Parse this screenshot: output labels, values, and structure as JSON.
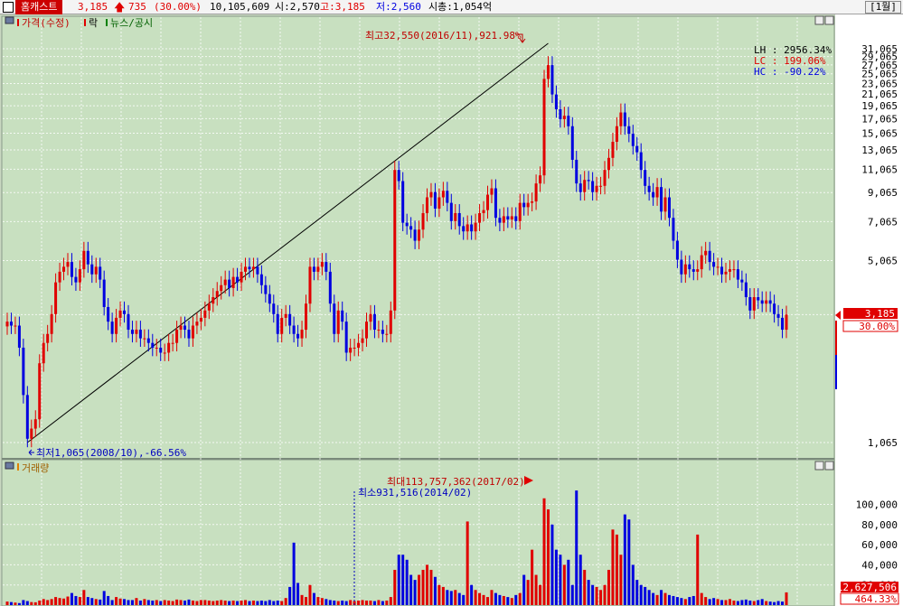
{
  "header": {
    "name": "홈캐스트",
    "price": "3,185",
    "change": "735",
    "change_pct": "(30.00%)",
    "volume": "10,105,609",
    "open": "시:2,570",
    "high": "고:3,185",
    "low": "저:2,560",
    "mktcap": "시총:1,054억",
    "period": "[1월]",
    "colors": {
      "up": "#e00000",
      "down": "#0000e0"
    }
  },
  "price_pane": {
    "legend": {
      "price": "가격(수정)",
      "rak": "락",
      "news": "뉴스/공시"
    },
    "marker_high": "최고32,550(2016/11),921.98%",
    "marker_low": "최저1,065(2008/10),-66.56%",
    "info": [
      {
        "label": "LH",
        "value": ": 2956.34%",
        "color": "#000000"
      },
      {
        "label": "LC",
        "value": ":  199.06%",
        "color": "#e00000"
      },
      {
        "label": "HC",
        "value": ": -90.22%",
        "color": "#0000e0"
      }
    ],
    "current_price": "3,185",
    "current_pct": "30.00%"
  },
  "volume_pane": {
    "legend": "거래량",
    "marker_max": "최대113,757,362(2017/02)",
    "marker_min": "최소931,516(2014/02)",
    "current_volume": "12,627,506",
    "current_pct": "464.33%"
  },
  "chart_data": [
    {
      "type": "candlestick",
      "title": "",
      "scale": "log",
      "ylim": [
        900,
        34000
      ],
      "yticks": [
        1065,
        3185,
        5065,
        7065,
        9065,
        11065,
        13065,
        15065,
        17065,
        19065,
        21065,
        23065,
        25065,
        27065,
        29065,
        31065
      ],
      "start": "2008/04",
      "end": "2017/12",
      "trendline": [
        [
          1065,
          32550
        ]
      ],
      "close": [
        3000,
        2900,
        2900,
        2400,
        1600,
        1100,
        1200,
        1300,
        2100,
        2500,
        2700,
        3200,
        4200,
        4600,
        4800,
        5000,
        4400,
        4200,
        4700,
        5500,
        4900,
        4500,
        4800,
        4300,
        3400,
        3000,
        2700,
        3100,
        3300,
        3200,
        2800,
        2700,
        2800,
        2600,
        2600,
        2500,
        2400,
        2400,
        2300,
        2300,
        2500,
        2500,
        2800,
        2900,
        2800,
        2600,
        2900,
        3000,
        3100,
        3300,
        3500,
        3700,
        3900,
        4100,
        4300,
        4000,
        4400,
        4200,
        4600,
        4800,
        4700,
        4800,
        4500,
        4100,
        3800,
        3500,
        3200,
        2700,
        3100,
        3200,
        2900,
        2700,
        2600,
        2800,
        3500,
        4800,
        4600,
        4800,
        5000,
        4600,
        3500,
        2700,
        3300,
        3000,
        2300,
        2400,
        2400,
        2500,
        2600,
        3000,
        3200,
        2800,
        2800,
        2700,
        2700,
        3300,
        11000,
        10000,
        7000,
        6800,
        6600,
        6000,
        6600,
        7600,
        8700,
        9100,
        7900,
        8700,
        9200,
        8300,
        7100,
        7600,
        6800,
        6500,
        6900,
        6500,
        7000,
        7600,
        7800,
        8900,
        9400,
        7300,
        7000,
        7400,
        7200,
        7400,
        7100,
        8300,
        8000,
        8300,
        8400,
        9800,
        10500,
        24000,
        27000,
        21000,
        18500,
        17000,
        17500,
        16000,
        12000,
        9800,
        9100,
        10100,
        10000,
        9100,
        9600,
        9600,
        11000,
        12200,
        14000,
        16000,
        18000,
        16000,
        15000,
        13500,
        12800,
        11000,
        9600,
        9100,
        8700,
        9500,
        7700,
        8700,
        7300,
        6000,
        5100,
        4500,
        4900,
        4700,
        4600,
        4700,
        5300,
        5500,
        5000,
        4800,
        4800,
        4500,
        4600,
        4700,
        4700,
        4300,
        4200,
        3700,
        3300,
        3700,
        3600,
        3500,
        3600,
        3500,
        3200,
        3100,
        2800,
        3185
      ],
      "volume_ylim": [
        0,
        130000
      ],
      "volume_yticks": [
        20000,
        40000,
        60000,
        80000,
        100000
      ],
      "volume": [
        3500,
        3000,
        2500,
        2000,
        5000,
        4000,
        3000,
        2800,
        4500,
        6000,
        5000,
        6000,
        8000,
        7000,
        6500,
        8500,
        12000,
        9000,
        8000,
        15000,
        8000,
        7000,
        6000,
        5500,
        14000,
        9000,
        5000,
        8000,
        6500,
        6000,
        5000,
        5000,
        7000,
        4500,
        6000,
        5000,
        4500,
        5000,
        4000,
        5000,
        4500,
        4000,
        5500,
        5000,
        4500,
        5500,
        4500,
        4000,
        5000,
        5000,
        4500,
        4000,
        4500,
        5000,
        4500,
        4000,
        4500,
        4000,
        4500,
        5000,
        4000,
        4500,
        4000,
        4500,
        4000,
        5000,
        4000,
        4500,
        4000,
        7000,
        18000,
        62000,
        22000,
        10000,
        8000,
        20000,
        12000,
        8000,
        7000,
        6000,
        5000,
        4500,
        4000,
        4500,
        4000,
        5000,
        4000,
        4500,
        5000,
        4500,
        4500,
        4000,
        5000,
        4000,
        4500,
        8000,
        35000,
        50000,
        50000,
        45000,
        30000,
        25000,
        30000,
        35000,
        40000,
        35000,
        28000,
        20000,
        18000,
        15000,
        14000,
        15000,
        12000,
        10000,
        83000,
        20000,
        15000,
        12000,
        10000,
        8000,
        15000,
        12000,
        10000,
        9000,
        8000,
        7000,
        10000,
        12000,
        30000,
        25000,
        55000,
        30000,
        20000,
        106000,
        95000,
        80000,
        55000,
        50000,
        40000,
        45000,
        20000,
        113757,
        50000,
        35000,
        25000,
        20000,
        18000,
        15000,
        20000,
        35000,
        75000,
        70000,
        50000,
        90000,
        85000,
        40000,
        25000,
        20000,
        18000,
        15000,
        12000,
        10000,
        15000,
        12000,
        10000,
        9000,
        8000,
        7000,
        6000,
        8000,
        9000,
        70000,
        12000,
        8000,
        6000,
        7000,
        6000,
        5000,
        5000,
        6000,
        4500,
        4000,
        5000,
        5500,
        4500,
        4000,
        5000,
        6000,
        4000,
        3500,
        3000,
        4000,
        3500,
        12627
      ]
    }
  ]
}
